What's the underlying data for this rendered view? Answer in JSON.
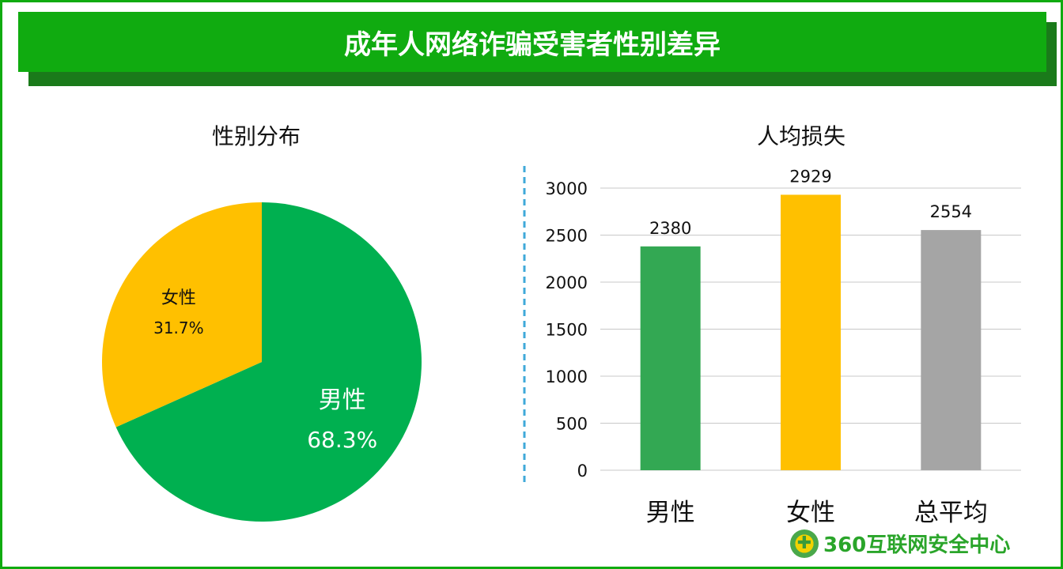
{
  "title": "成年人网络诈骗受害者性别差异",
  "logo": {
    "text": "360互联网安全中心",
    "icon": "360-shield-icon"
  },
  "colors": {
    "header": "#10ab10",
    "header_shadow": "#1a7a1a",
    "male": "#00b050",
    "female": "#ffc000",
    "avg": "#a5a5a5",
    "divider": "#3fa9d9"
  },
  "chart_data": [
    {
      "type": "pie",
      "title": "性别分布",
      "slices": [
        {
          "label": "男性",
          "value": 68.3,
          "display": "68.3%",
          "color": "#00b050"
        },
        {
          "label": "女性",
          "value": 31.7,
          "display": "31.7%",
          "color": "#ffc000"
        }
      ]
    },
    {
      "type": "bar",
      "title": "人均损失",
      "categories": [
        "男性",
        "女性",
        "总平均"
      ],
      "values": [
        2380,
        2929,
        2554
      ],
      "colors": [
        "#33a853",
        "#ffc000",
        "#a5a5a5"
      ],
      "ylim": [
        0,
        3000
      ],
      "yticks": [
        0,
        500,
        1000,
        1500,
        2000,
        2500,
        3000
      ],
      "grid": true,
      "legend": "none"
    }
  ]
}
